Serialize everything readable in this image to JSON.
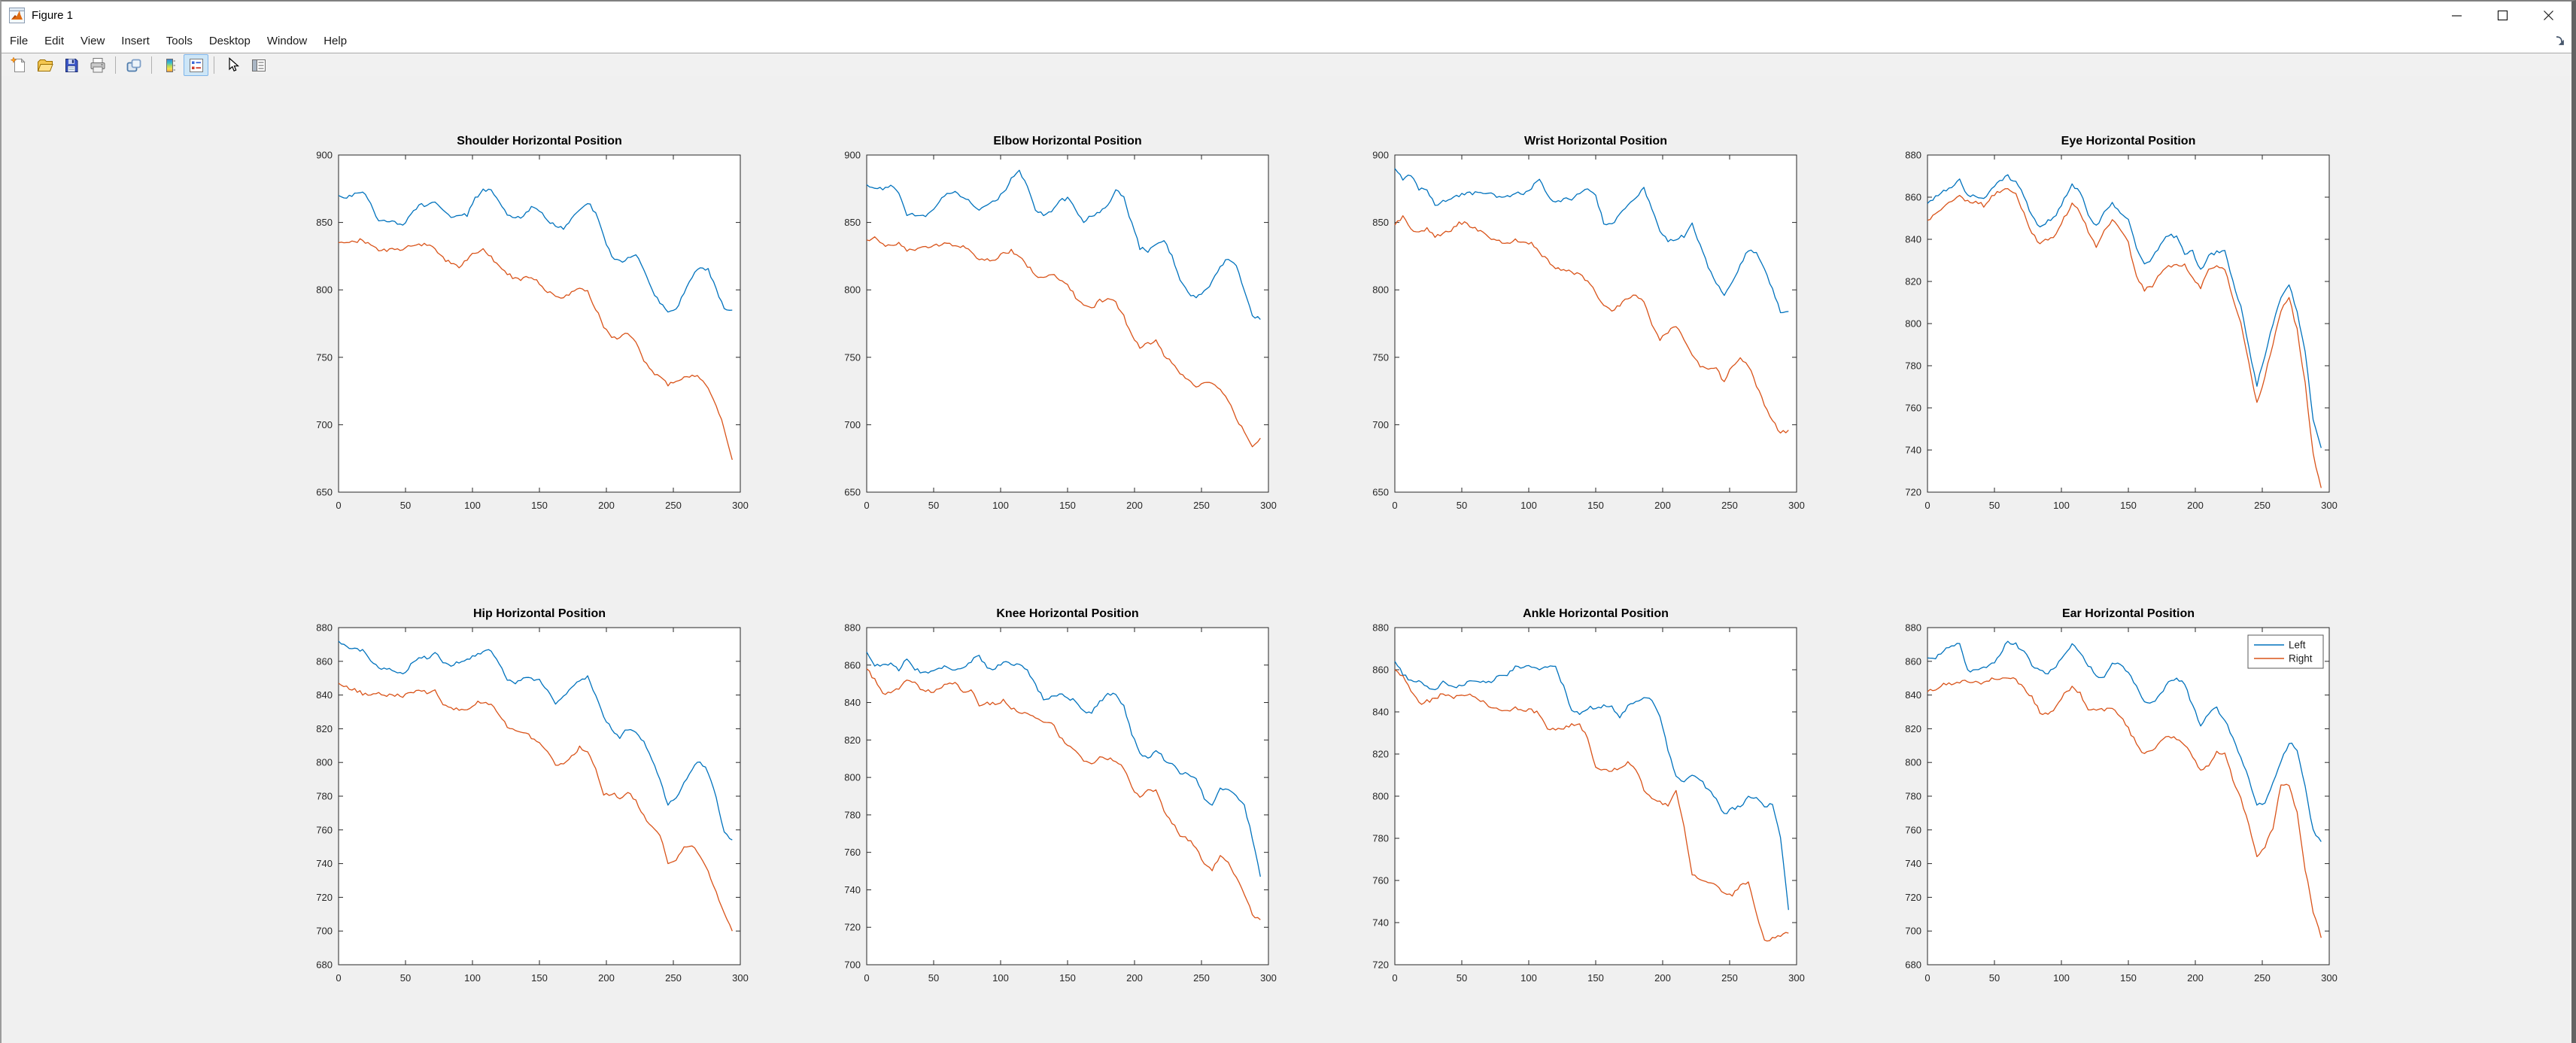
{
  "window": {
    "title": "Figure 1",
    "controls": [
      "minimize",
      "maximize",
      "close"
    ]
  },
  "menubar": {
    "items": [
      "File",
      "Edit",
      "View",
      "Insert",
      "Tools",
      "Desktop",
      "Window",
      "Help"
    ]
  },
  "toolbar": {
    "buttons": [
      "new-figure",
      "open-file",
      "save-figure",
      "print-figure",
      "link-plot",
      "insert-colorbar",
      "insert-legend",
      "edit-plot",
      "property-inspector"
    ],
    "active_button": "insert-legend"
  },
  "colors": {
    "left_line": "#0072BD",
    "right_line": "#D95319",
    "axis": "#262626",
    "figure_bg": "#F0F0F0",
    "plot_bg": "#FFFFFF",
    "toolbar_active_bg": "#CDE6F7",
    "toolbar_active_border": "#7EB4EA"
  },
  "chart_data": [
    {
      "type": "line",
      "title": "Shoulder Horizontal Position",
      "xlim": [
        0,
        300
      ],
      "xtick": 50,
      "ylim": [
        650,
        900
      ],
      "ytick": 50,
      "x_step": 6,
      "grid": false,
      "legend": {
        "show": false,
        "position": "northeast"
      },
      "series": [
        {
          "name": "Left",
          "color": "#0072BD",
          "y": [
            870,
            869,
            871,
            873,
            864,
            851,
            851,
            850,
            849,
            855,
            864,
            862,
            865,
            858,
            853,
            856,
            855,
            868,
            874,
            873,
            866,
            855,
            853,
            854,
            862,
            858,
            852,
            847,
            846,
            853,
            858,
            865,
            857,
            840,
            824,
            821,
            823,
            826,
            815,
            800,
            790,
            784,
            786,
            797,
            810,
            816,
            815,
            800,
            787,
            785
          ]
        },
        {
          "name": "Right",
          "color": "#D95319",
          "y": [
            835,
            834,
            836,
            837,
            833,
            829,
            829,
            831,
            830,
            833,
            833,
            834,
            830,
            824,
            819,
            817,
            822,
            828,
            830,
            824,
            817,
            812,
            808,
            808,
            810,
            805,
            799,
            796,
            794,
            798,
            801,
            799,
            786,
            773,
            766,
            764,
            768,
            762,
            748,
            739,
            737,
            729,
            733,
            735,
            737,
            735,
            728,
            714,
            697,
            674
          ]
        }
      ]
    },
    {
      "type": "line",
      "title": "Elbow Horizontal Position",
      "xlim": [
        0,
        300
      ],
      "xtick": 50,
      "ylim": [
        650,
        900
      ],
      "ytick": 50,
      "x_step": 6,
      "grid": false,
      "legend": {
        "show": false,
        "position": "northeast"
      },
      "series": [
        {
          "name": "Left",
          "color": "#0072BD",
          "y": [
            878,
            876,
            875,
            877,
            871,
            855,
            856,
            855,
            857,
            865,
            871,
            872,
            869,
            865,
            860,
            864,
            866,
            872,
            882,
            889,
            876,
            860,
            856,
            859,
            866,
            868,
            860,
            851,
            855,
            858,
            863,
            874,
            868,
            849,
            831,
            829,
            833,
            837,
            825,
            806,
            798,
            794,
            799,
            806,
            818,
            823,
            818,
            800,
            781,
            778
          ]
        },
        {
          "name": "Right",
          "color": "#D95319",
          "y": [
            837,
            839,
            833,
            833,
            834,
            829,
            829,
            831,
            832,
            833,
            835,
            833,
            832,
            828,
            822,
            822,
            823,
            827,
            829,
            825,
            818,
            811,
            808,
            812,
            807,
            803,
            795,
            790,
            786,
            792,
            793,
            791,
            780,
            766,
            758,
            760,
            763,
            752,
            746,
            738,
            733,
            728,
            730,
            732,
            726,
            718,
            705,
            694,
            683,
            690
          ]
        }
      ]
    },
    {
      "type": "line",
      "title": "Wrist Horizontal Position",
      "xlim": [
        0,
        300
      ],
      "xtick": 50,
      "ylim": [
        650,
        900
      ],
      "ytick": 50,
      "x_step": 6,
      "grid": false,
      "legend": {
        "show": false,
        "position": "northeast"
      },
      "series": [
        {
          "name": "Left",
          "color": "#0072BD",
          "y": [
            890,
            882,
            885,
            874,
            875,
            862,
            866,
            867,
            870,
            871,
            872,
            871,
            872,
            868,
            869,
            872,
            871,
            875,
            883,
            871,
            864,
            868,
            867,
            872,
            875,
            869,
            850,
            848,
            856,
            862,
            869,
            875,
            860,
            843,
            836,
            838,
            840,
            849,
            833,
            817,
            805,
            797,
            806,
            818,
            830,
            827,
            815,
            801,
            783,
            784
          ]
        },
        {
          "name": "Right",
          "color": "#D95319",
          "y": [
            848,
            854,
            845,
            843,
            845,
            840,
            842,
            844,
            850,
            849,
            845,
            843,
            838,
            836,
            835,
            837,
            835,
            834,
            828,
            822,
            816,
            815,
            813,
            811,
            807,
            798,
            789,
            785,
            788,
            794,
            797,
            790,
            775,
            763,
            768,
            774,
            762,
            752,
            744,
            742,
            742,
            731,
            744,
            750,
            744,
            729,
            715,
            703,
            694,
            696
          ]
        }
      ]
    },
    {
      "type": "line",
      "title": "Eye Horizontal Position",
      "xlim": [
        0,
        300
      ],
      "xtick": 50,
      "ylim": [
        720,
        880
      ],
      "ytick": 20,
      "x_step": 6,
      "grid": false,
      "legend": {
        "show": false,
        "position": "northeast"
      },
      "series": [
        {
          "name": "Left",
          "color": "#0072BD",
          "y": [
            857,
            860,
            863,
            865,
            868,
            861,
            861,
            859,
            864,
            868,
            870,
            867,
            861,
            851,
            846,
            849,
            851,
            859,
            866,
            863,
            851,
            846,
            853,
            857,
            852,
            849,
            836,
            828,
            831,
            838,
            842,
            841,
            833,
            834,
            825,
            832,
            834,
            835,
            820,
            808,
            788,
            771,
            785,
            800,
            812,
            819,
            806,
            786,
            755,
            741
          ]
        },
        {
          "name": "Right",
          "color": "#D95319",
          "y": [
            849,
            852,
            856,
            858,
            861,
            858,
            858,
            856,
            860,
            863,
            864,
            861,
            852,
            843,
            838,
            840,
            842,
            850,
            857,
            853,
            844,
            836,
            845,
            849,
            845,
            838,
            822,
            816,
            818,
            824,
            827,
            828,
            828,
            822,
            817,
            826,
            827,
            826,
            812,
            800,
            781,
            762,
            775,
            790,
            806,
            812,
            797,
            772,
            738,
            722
          ]
        }
      ]
    },
    {
      "type": "line",
      "title": "Hip Horizontal Position",
      "xlim": [
        0,
        300
      ],
      "xtick": 50,
      "ylim": [
        680,
        880
      ],
      "ytick": 20,
      "x_step": 6,
      "grid": false,
      "legend": {
        "show": false,
        "position": "northeast"
      },
      "series": [
        {
          "name": "Left",
          "color": "#0072BD",
          "y": [
            872,
            869,
            867,
            866,
            861,
            856,
            856,
            854,
            852,
            858,
            863,
            862,
            865,
            860,
            858,
            859,
            861,
            864,
            865,
            867,
            858,
            849,
            847,
            850,
            850,
            849,
            843,
            835,
            839,
            844,
            849,
            851,
            840,
            827,
            820,
            815,
            820,
            817,
            812,
            801,
            790,
            775,
            778,
            788,
            796,
            801,
            794,
            780,
            758,
            754
          ]
        },
        {
          "name": "Right",
          "color": "#D95319",
          "y": [
            847,
            845,
            843,
            841,
            840,
            841,
            840,
            840,
            839,
            841,
            843,
            841,
            843,
            835,
            833,
            831,
            832,
            835,
            836,
            835,
            829,
            821,
            820,
            818,
            815,
            812,
            806,
            799,
            800,
            803,
            809,
            807,
            797,
            780,
            782,
            779,
            782,
            778,
            768,
            762,
            757,
            740,
            741,
            750,
            751,
            745,
            736,
            723,
            710,
            700
          ]
        }
      ]
    },
    {
      "type": "line",
      "title": "Knee Horizontal Position",
      "xlim": [
        0,
        300
      ],
      "xtick": 50,
      "ylim": [
        700,
        880
      ],
      "ytick": 20,
      "x_step": 6,
      "grid": false,
      "legend": {
        "show": false,
        "position": "northeast"
      },
      "series": [
        {
          "name": "Left",
          "color": "#0072BD",
          "y": [
            867,
            860,
            860,
            861,
            857,
            864,
            858,
            856,
            856,
            859,
            859,
            858,
            859,
            862,
            865,
            859,
            858,
            862,
            860,
            860,
            857,
            849,
            842,
            843,
            845,
            842,
            841,
            835,
            835,
            840,
            844,
            845,
            838,
            823,
            813,
            810,
            815,
            810,
            807,
            802,
            802,
            799,
            789,
            785,
            794,
            793,
            791,
            785,
            768,
            747
          ]
        },
        {
          "name": "Right",
          "color": "#D95319",
          "y": [
            858,
            852,
            844,
            846,
            847,
            852,
            851,
            846,
            846,
            847,
            850,
            850,
            846,
            847,
            839,
            840,
            839,
            841,
            837,
            835,
            834,
            832,
            829,
            830,
            822,
            817,
            814,
            809,
            807,
            811,
            810,
            809,
            805,
            795,
            789,
            794,
            793,
            782,
            776,
            769,
            767,
            762,
            754,
            750,
            759,
            755,
            746,
            738,
            727,
            724
          ]
        }
      ]
    },
    {
      "type": "line",
      "title": "Ankle Horizontal Position",
      "xlim": [
        0,
        300
      ],
      "xtick": 50,
      "ylim": [
        720,
        880
      ],
      "ytick": 20,
      "x_step": 6,
      "grid": false,
      "legend": {
        "show": false,
        "position": "northeast"
      },
      "series": [
        {
          "name": "Left",
          "color": "#0072BD",
          "y": [
            864,
            858,
            855,
            855,
            852,
            850,
            854,
            852,
            852,
            854,
            854,
            854,
            854,
            857,
            858,
            861,
            861,
            862,
            860,
            861,
            861,
            852,
            841,
            839,
            842,
            842,
            843,
            842,
            837,
            843,
            845,
            847,
            845,
            838,
            822,
            809,
            807,
            810,
            808,
            803,
            799,
            791,
            794,
            795,
            800,
            799,
            795,
            796,
            780,
            746
          ]
        },
        {
          "name": "Right",
          "color": "#D95319",
          "y": [
            860,
            857,
            850,
            844,
            845,
            846,
            849,
            847,
            847,
            848,
            847,
            845,
            842,
            841,
            840,
            842,
            841,
            841,
            839,
            832,
            832,
            832,
            834,
            834,
            828,
            813,
            812,
            812,
            814,
            816,
            813,
            803,
            798,
            797,
            796,
            802,
            786,
            763,
            760,
            759,
            758,
            754,
            753,
            757,
            760,
            745,
            731,
            733,
            734,
            735
          ]
        }
      ]
    },
    {
      "type": "line",
      "title": "Ear Horizontal Position",
      "xlim": [
        0,
        300
      ],
      "xtick": 50,
      "ylim": [
        680,
        880
      ],
      "ytick": 20,
      "x_step": 6,
      "grid": false,
      "legend": {
        "show": true,
        "position": "northeast",
        "labels": [
          "Left",
          "Right"
        ]
      },
      "series": [
        {
          "name": "Left",
          "color": "#0072BD",
          "y": [
            862,
            862,
            866,
            870,
            870,
            854,
            855,
            856,
            858,
            864,
            872,
            870,
            866,
            858,
            854,
            853,
            857,
            864,
            870,
            865,
            858,
            851,
            851,
            858,
            858,
            854,
            845,
            836,
            835,
            840,
            847,
            850,
            846,
            834,
            821,
            829,
            832,
            825,
            815,
            803,
            790,
            775,
            776,
            789,
            800,
            812,
            808,
            785,
            760,
            753
          ]
        },
        {
          "name": "Right",
          "color": "#D95319",
          "y": [
            842,
            844,
            846,
            847,
            848,
            848,
            848,
            847,
            850,
            850,
            851,
            849,
            844,
            839,
            830,
            828,
            833,
            841,
            845,
            841,
            832,
            831,
            831,
            832,
            828,
            820,
            811,
            805,
            807,
            812,
            816,
            814,
            810,
            804,
            795,
            799,
            806,
            805,
            790,
            778,
            763,
            745,
            750,
            761,
            787,
            786,
            770,
            737,
            712,
            696
          ]
        }
      ]
    }
  ]
}
